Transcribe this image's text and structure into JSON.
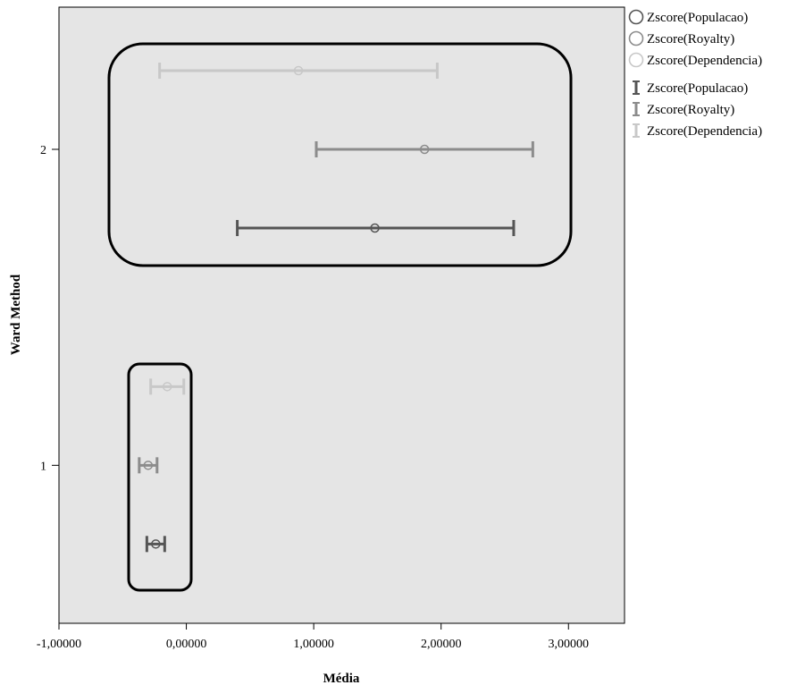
{
  "chart_data": {
    "type": "errorbar",
    "xlabel": "Média",
    "ylabel": "Ward Method",
    "xlim": [
      -1.0,
      3.44
    ],
    "ylim": [
      0.5,
      2.45
    ],
    "x_ticks": [
      {
        "value": -1.0,
        "label": "-1,00000"
      },
      {
        "value": 0.0,
        "label": "0,00000"
      },
      {
        "value": 1.0,
        "label": "1,00000"
      },
      {
        "value": 2.0,
        "label": "2,00000"
      },
      {
        "value": 3.0,
        "label": "3,00000"
      }
    ],
    "y_ticks": [
      {
        "value": 1,
        "label": "1"
      },
      {
        "value": 2,
        "label": "2"
      }
    ],
    "categories": [
      "1",
      "2"
    ],
    "series": [
      {
        "name": "Zscore(Populacao)",
        "color": "#555555",
        "offset": -0.25,
        "points": [
          {
            "group": 1,
            "mean": -0.24,
            "lower": -0.31,
            "upper": -0.17
          },
          {
            "group": 2,
            "mean": 1.48,
            "lower": 0.4,
            "upper": 2.57
          }
        ]
      },
      {
        "name": "Zscore(Royalty)",
        "color": "#8c8c8c",
        "offset": 0.0,
        "points": [
          {
            "group": 1,
            "mean": -0.3,
            "lower": -0.37,
            "upper": -0.23
          },
          {
            "group": 2,
            "mean": 1.87,
            "lower": 1.02,
            "upper": 2.72
          }
        ]
      },
      {
        "name": "Zscore(Dependencia)",
        "color": "#c8c8c8",
        "offset": 0.25,
        "points": [
          {
            "group": 1,
            "mean": -0.15,
            "lower": -0.28,
            "upper": -0.02
          },
          {
            "group": 2,
            "mean": 0.88,
            "lower": -0.21,
            "upper": 1.97
          }
        ]
      }
    ],
    "annotations": [
      {
        "type": "rounded-rectangle",
        "around_group": 2
      },
      {
        "type": "rounded-rectangle",
        "around_group": 1
      }
    ],
    "legend": {
      "placement": "right-top",
      "marker_entries": [
        "Zscore(Populacao)",
        "Zscore(Royalty)",
        "Zscore(Dependencia)"
      ],
      "errorbar_entries": [
        "Zscore(Populacao)",
        "Zscore(Royalty)",
        "Zscore(Dependencia)"
      ]
    },
    "plot_background": "#e5e5e5",
    "grid": false
  }
}
